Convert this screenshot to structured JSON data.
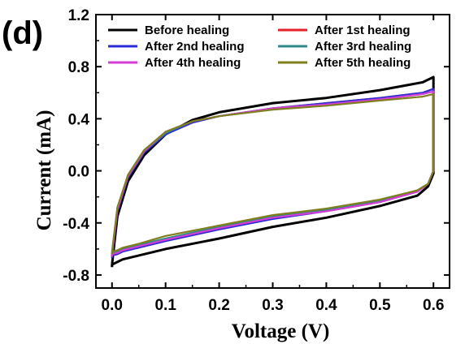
{
  "panel_label": "(d)",
  "chart_data": {
    "type": "line",
    "xlabel": "Voltage (V)",
    "ylabel": "Current (mA)",
    "xlim": [
      -0.03,
      0.63
    ],
    "ylim": [
      -0.9,
      1.2
    ],
    "xticks": [
      "0.0",
      "0.1",
      "0.2",
      "0.3",
      "0.4",
      "0.5",
      "0.6"
    ],
    "yticks": [
      "-0.8",
      "-0.4",
      "0.0",
      "0.4",
      "0.8",
      "1.2"
    ],
    "legend_position": "top",
    "series": [
      {
        "name": "Before healing",
        "color": "#000000",
        "x": [
          0.0,
          0.01,
          0.03,
          0.06,
          0.1,
          0.15,
          0.2,
          0.3,
          0.4,
          0.5,
          0.58,
          0.6,
          0.6,
          0.59,
          0.57,
          0.5,
          0.4,
          0.3,
          0.2,
          0.1,
          0.05,
          0.02,
          0.01,
          0.0,
          0.0
        ],
        "y": [
          -0.72,
          -0.35,
          -0.08,
          0.12,
          0.28,
          0.39,
          0.45,
          0.52,
          0.56,
          0.62,
          0.68,
          0.72,
          -0.02,
          -0.12,
          -0.19,
          -0.27,
          -0.36,
          -0.43,
          -0.52,
          -0.6,
          -0.65,
          -0.68,
          -0.7,
          -0.72,
          -0.74
        ]
      },
      {
        "name": "After 1st healing",
        "color": "#e8202a",
        "x": [
          0.0,
          0.01,
          0.03,
          0.06,
          0.1,
          0.15,
          0.2,
          0.3,
          0.4,
          0.5,
          0.58,
          0.6,
          0.6,
          0.59,
          0.57,
          0.5,
          0.4,
          0.3,
          0.2,
          0.1,
          0.05,
          0.02,
          0.01,
          0.0,
          0.0
        ],
        "y": [
          -0.64,
          -0.3,
          -0.04,
          0.15,
          0.29,
          0.38,
          0.42,
          0.48,
          0.52,
          0.56,
          0.6,
          0.63,
          0.0,
          -0.1,
          -0.16,
          -0.24,
          -0.31,
          -0.36,
          -0.44,
          -0.53,
          -0.58,
          -0.61,
          -0.63,
          -0.64,
          -0.66
        ]
      },
      {
        "name": "After 2nd healing",
        "color": "#2b2bd6",
        "x": [
          0.0,
          0.01,
          0.03,
          0.06,
          0.1,
          0.15,
          0.2,
          0.3,
          0.4,
          0.5,
          0.58,
          0.6,
          0.6,
          0.59,
          0.57,
          0.5,
          0.4,
          0.3,
          0.2,
          0.1,
          0.05,
          0.02,
          0.01,
          0.0,
          0.0
        ],
        "y": [
          -0.65,
          -0.31,
          -0.05,
          0.14,
          0.28,
          0.37,
          0.42,
          0.48,
          0.52,
          0.56,
          0.6,
          0.63,
          0.0,
          -0.1,
          -0.16,
          -0.24,
          -0.31,
          -0.37,
          -0.45,
          -0.54,
          -0.59,
          -0.62,
          -0.64,
          -0.65,
          -0.67
        ]
      },
      {
        "name": "After 3rd healing",
        "color": "#2e8a8a",
        "x": [
          0.0,
          0.01,
          0.03,
          0.06,
          0.1,
          0.15,
          0.2,
          0.3,
          0.4,
          0.5,
          0.58,
          0.6,
          0.6,
          0.59,
          0.57,
          0.5,
          0.4,
          0.3,
          0.2,
          0.1,
          0.05,
          0.02,
          0.01,
          0.0,
          0.0
        ],
        "y": [
          -0.63,
          -0.29,
          -0.04,
          0.15,
          0.29,
          0.38,
          0.42,
          0.48,
          0.51,
          0.55,
          0.59,
          0.61,
          0.0,
          -0.1,
          -0.15,
          -0.23,
          -0.3,
          -0.35,
          -0.43,
          -0.52,
          -0.57,
          -0.6,
          -0.62,
          -0.63,
          -0.65
        ]
      },
      {
        "name": "After 4th healing",
        "color": "#d63cd6",
        "x": [
          0.0,
          0.01,
          0.03,
          0.06,
          0.1,
          0.15,
          0.2,
          0.3,
          0.4,
          0.5,
          0.58,
          0.6,
          0.6,
          0.59,
          0.57,
          0.5,
          0.4,
          0.3,
          0.2,
          0.1,
          0.05,
          0.02,
          0.01,
          0.0,
          0.0
        ],
        "y": [
          -0.64,
          -0.3,
          -0.04,
          0.15,
          0.3,
          0.38,
          0.42,
          0.48,
          0.51,
          0.55,
          0.59,
          0.61,
          0.0,
          -0.1,
          -0.16,
          -0.24,
          -0.31,
          -0.36,
          -0.44,
          -0.53,
          -0.58,
          -0.61,
          -0.63,
          -0.64,
          -0.66
        ]
      },
      {
        "name": "After 5th healing",
        "color": "#7f7f1e",
        "x": [
          0.0,
          0.01,
          0.03,
          0.06,
          0.1,
          0.15,
          0.2,
          0.3,
          0.4,
          0.5,
          0.58,
          0.6,
          0.6,
          0.59,
          0.57,
          0.5,
          0.4,
          0.3,
          0.2,
          0.1,
          0.05,
          0.02,
          0.01,
          0.0,
          0.0
        ],
        "y": [
          -0.62,
          -0.28,
          -0.03,
          0.16,
          0.3,
          0.38,
          0.42,
          0.47,
          0.5,
          0.54,
          0.57,
          0.59,
          0.0,
          -0.1,
          -0.15,
          -0.22,
          -0.29,
          -0.34,
          -0.42,
          -0.5,
          -0.56,
          -0.59,
          -0.61,
          -0.62,
          -0.64
        ]
      }
    ]
  }
}
